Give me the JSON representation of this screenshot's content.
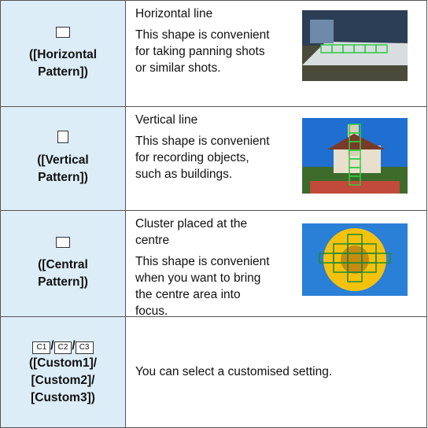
{
  "rows": [
    {
      "label": "([Horizontal Pattern])",
      "title": "Horizontal line",
      "description": "This shape is convenient for taking panning shots or similar shots."
    },
    {
      "label": "([Vertical Pattern])",
      "title": "Vertical line",
      "description": "This shape is convenient for recording objects, such as buildings."
    },
    {
      "label": "([Central Pattern])",
      "title": "Cluster placed at the centre",
      "description": "This shape is convenient when you want to bring the centre area into focus."
    },
    {
      "icons": [
        "C1",
        "C2",
        "C3"
      ],
      "separator": "/",
      "label": "([Custom1]/ [Custom2]/ [Custom3])",
      "description": "You can select a customised setting."
    }
  ]
}
